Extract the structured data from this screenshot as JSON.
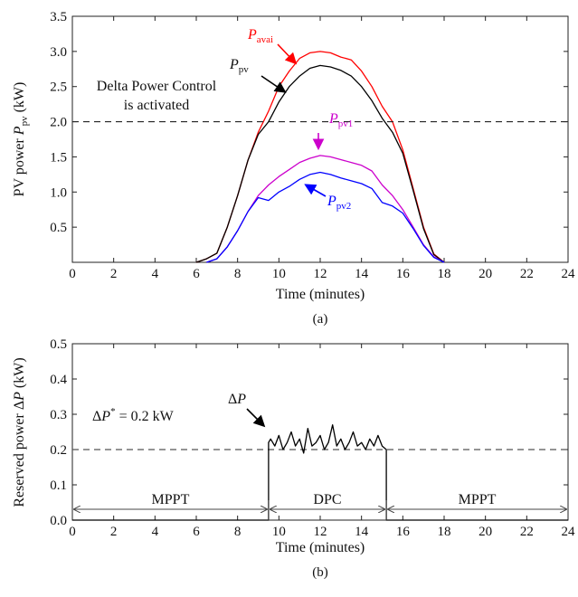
{
  "chart_data": [
    {
      "type": "line",
      "panel_caption": "(a)",
      "xlabel": "Time (minutes)",
      "ylabel": "PV power P_pv (kW)",
      "ylabel_parts": {
        "main": "PV power ",
        "var": "P",
        "sub": "pv",
        "unit": " (kW)"
      },
      "xlim": [
        0,
        24
      ],
      "ylim": [
        0,
        3.5
      ],
      "xticks": [
        "0",
        "2",
        "4",
        "6",
        "8",
        "10",
        "12",
        "14",
        "16",
        "18",
        "20",
        "22",
        "24"
      ],
      "yticks": [
        "0.5",
        "1.0",
        "1.5",
        "2.0",
        "2.5",
        "3.0",
        "3.5"
      ],
      "grid": false,
      "reference_line": {
        "y": 2.0,
        "style": "dashed",
        "label_line1": "Delta Power Control",
        "label_line2": "is activated"
      },
      "series": [
        {
          "name": "P_avai",
          "label_var": "P",
          "label_sub": "avai",
          "color": "#ff0000",
          "x": [
            6.0,
            6.5,
            7.0,
            7.5,
            8.0,
            8.5,
            9.0,
            9.5,
            10.0,
            10.5,
            11.0,
            11.5,
            12.0,
            12.5,
            13.0,
            13.5,
            14.0,
            14.5,
            15.0,
            15.5,
            16.0,
            16.5,
            17.0,
            17.5,
            18.0
          ],
          "y": [
            0.0,
            0.05,
            0.13,
            0.5,
            0.95,
            1.45,
            1.85,
            2.15,
            2.5,
            2.72,
            2.9,
            2.98,
            3.0,
            2.98,
            2.92,
            2.88,
            2.72,
            2.5,
            2.22,
            2.0,
            1.6,
            1.05,
            0.5,
            0.12,
            0.0
          ]
        },
        {
          "name": "P_pv",
          "label_var": "P",
          "label_sub": "pv",
          "color": "#000000",
          "x": [
            6.0,
            6.5,
            7.0,
            7.5,
            8.0,
            8.5,
            9.0,
            9.5,
            10.0,
            10.5,
            11.0,
            11.5,
            12.0,
            12.5,
            13.0,
            13.5,
            14.0,
            14.5,
            15.0,
            15.5,
            16.0,
            16.5,
            17.0,
            17.5,
            18.0
          ],
          "y": [
            0.0,
            0.05,
            0.13,
            0.5,
            0.95,
            1.45,
            1.82,
            2.0,
            2.28,
            2.5,
            2.65,
            2.76,
            2.8,
            2.78,
            2.73,
            2.65,
            2.5,
            2.3,
            2.05,
            1.85,
            1.55,
            1.02,
            0.48,
            0.11,
            0.0
          ]
        },
        {
          "name": "P_pv1",
          "label_var": "P",
          "label_sub": "pv1",
          "color": "#cc00cc",
          "x": [
            6.5,
            7.0,
            7.5,
            8.0,
            8.5,
            9.0,
            9.5,
            10.0,
            10.5,
            11.0,
            11.5,
            12.0,
            12.5,
            13.0,
            13.5,
            14.0,
            14.5,
            15.0,
            15.5,
            16.0,
            16.5,
            17.0,
            17.5,
            18.0
          ],
          "y": [
            0.0,
            0.05,
            0.22,
            0.45,
            0.72,
            0.95,
            1.1,
            1.22,
            1.32,
            1.42,
            1.48,
            1.52,
            1.5,
            1.46,
            1.42,
            1.38,
            1.3,
            1.1,
            0.95,
            0.75,
            0.5,
            0.25,
            0.08,
            0.0
          ]
        },
        {
          "name": "P_pv2",
          "label_var": "P",
          "label_sub": "pv2",
          "color": "#0000ff",
          "x": [
            6.5,
            7.0,
            7.5,
            8.0,
            8.5,
            9.0,
            9.5,
            10.0,
            10.5,
            11.0,
            11.5,
            12.0,
            12.5,
            13.0,
            13.5,
            14.0,
            14.5,
            15.0,
            15.5,
            16.0,
            16.5,
            17.0,
            17.5,
            18.0
          ],
          "y": [
            0.0,
            0.05,
            0.22,
            0.45,
            0.72,
            0.92,
            0.88,
            1.0,
            1.08,
            1.18,
            1.25,
            1.28,
            1.25,
            1.2,
            1.16,
            1.12,
            1.05,
            0.85,
            0.8,
            0.7,
            0.48,
            0.24,
            0.07,
            0.0
          ]
        }
      ]
    },
    {
      "type": "line",
      "panel_caption": "(b)",
      "xlabel": "Time (minutes)",
      "ylabel": "Reserved power ΔP (kW)",
      "ylabel_parts": {
        "main": "Reserved power Δ",
        "var": "P",
        "unit": " (kW)"
      },
      "xlim": [
        0,
        24
      ],
      "ylim": [
        0,
        0.5
      ],
      "xticks": [
        "0",
        "2",
        "4",
        "6",
        "8",
        "10",
        "12",
        "14",
        "16",
        "18",
        "20",
        "22",
        "24"
      ],
      "yticks": [
        "0.0",
        "0.1",
        "0.2",
        "0.3",
        "0.4",
        "0.5"
      ],
      "grid": false,
      "reference_line": {
        "y": 0.2,
        "style": "dashed",
        "label_delta": "Δ",
        "label_var": "P",
        "label_sup": "*",
        "label_rest": " = 0.2 kW"
      },
      "series": [
        {
          "name": "ΔP",
          "label_delta": "Δ",
          "label_var": "P",
          "color": "#000000",
          "x": [
            0,
            9.5,
            9.5,
            9.6,
            9.8,
            10.0,
            10.2,
            10.4,
            10.6,
            10.8,
            11.0,
            11.2,
            11.4,
            11.6,
            11.8,
            12.0,
            12.2,
            12.4,
            12.6,
            12.8,
            13.0,
            13.2,
            13.4,
            13.6,
            13.8,
            14.0,
            14.2,
            14.4,
            14.6,
            14.8,
            15.0,
            15.2,
            15.2,
            24
          ],
          "y": [
            0,
            0,
            0.22,
            0.23,
            0.21,
            0.24,
            0.2,
            0.22,
            0.25,
            0.21,
            0.23,
            0.19,
            0.26,
            0.21,
            0.22,
            0.24,
            0.2,
            0.22,
            0.27,
            0.21,
            0.23,
            0.2,
            0.22,
            0.25,
            0.21,
            0.22,
            0.2,
            0.23,
            0.21,
            0.24,
            0.21,
            0.2,
            0,
            0
          ]
        }
      ],
      "regions": [
        {
          "label": "MPPT",
          "from": 0,
          "to": 9.5
        },
        {
          "label": "DPC",
          "from": 9.5,
          "to": 15.2
        },
        {
          "label": "MPPT",
          "from": 15.2,
          "to": 24
        }
      ]
    }
  ]
}
